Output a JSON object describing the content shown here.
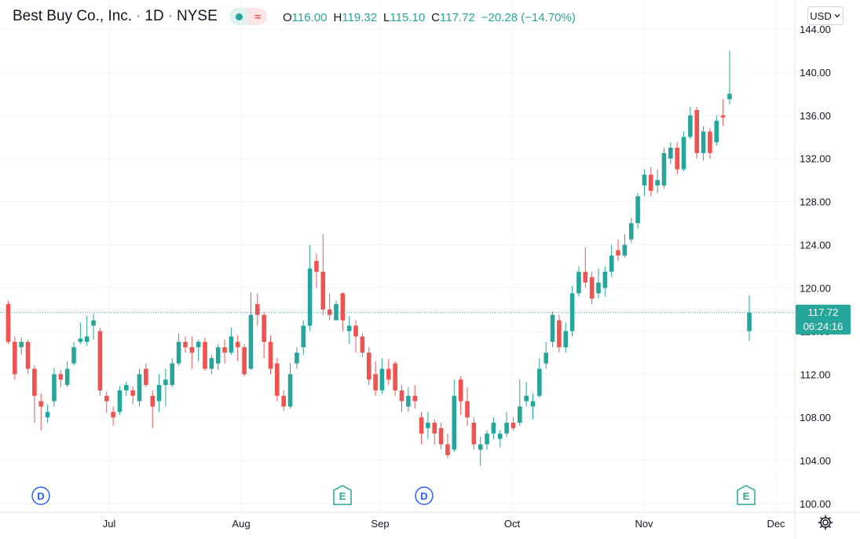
{
  "header": {
    "symbol_name": "Best Buy Co., Inc.",
    "interval": "1D",
    "exchange": "NYSE",
    "ohlc": {
      "open_label": "O",
      "open": "116.00",
      "high_label": "H",
      "high": "119.32",
      "low_label": "L",
      "low": "115.10",
      "close_label": "C",
      "close": "117.72",
      "change": "−20.28 (−14.70%)"
    },
    "currency": "USD",
    "currency_icon": "chevron-down-icon",
    "status_icons": [
      "market-open-dot-icon",
      "wave-icon"
    ]
  },
  "colors": {
    "up": "#26a69a",
    "down": "#ef5350",
    "grid": "#f0f3fa",
    "price_tag": "#26a69a",
    "dividend_marker": "#2962ff",
    "earnings_marker": "#26a69a"
  },
  "price_tag": {
    "price": "117.72",
    "countdown": "06:24:16"
  },
  "chart_data": {
    "type": "candlestick",
    "title": "Best Buy Co., Inc. · 1D · NYSE",
    "y_ticks": [
      "144.00",
      "140.00",
      "136.00",
      "132.00",
      "128.00",
      "124.00",
      "120.00",
      "116.00",
      "112.00",
      "108.00",
      "104.00",
      "100.00"
    ],
    "ylim": [
      100,
      144
    ],
    "x_ticks": [
      "Jul",
      "Aug",
      "Sep",
      "Oct",
      "Nov",
      "Dec"
    ],
    "last_price": 117.72,
    "grid": true,
    "markers": [
      {
        "label": "D",
        "type": "dividend",
        "near": "mid-June"
      },
      {
        "label": "E",
        "type": "earnings",
        "near": "late August"
      },
      {
        "label": "D",
        "type": "dividend",
        "near": "mid-September"
      },
      {
        "label": "E",
        "type": "earnings",
        "near": "late November"
      }
    ],
    "candles": [
      [
        118.5,
        115.0,
        118.8,
        114.8
      ],
      [
        115.0,
        112.0,
        115.5,
        111.5
      ],
      [
        114.5,
        115.0,
        115.4,
        113.8
      ],
      [
        115.0,
        112.5,
        115.2,
        112.0
      ],
      [
        112.5,
        110.0,
        112.8,
        107.5
      ],
      [
        109.5,
        109.0,
        110.2,
        106.8
      ],
      [
        108.0,
        108.5,
        109.2,
        107.5
      ],
      [
        109.5,
        112.0,
        112.6,
        109.0
      ],
      [
        112.0,
        111.5,
        112.4,
        110.8
      ],
      [
        111.0,
        112.5,
        113.2,
        110.8
      ],
      [
        113.0,
        114.5,
        115.0,
        112.8
      ],
      [
        115.0,
        115.3,
        116.8,
        114.8
      ],
      [
        115.0,
        115.5,
        117.4,
        114.6
      ],
      [
        116.5,
        117.0,
        117.6,
        115.2
      ],
      [
        116.0,
        110.5,
        116.3,
        110.0
      ],
      [
        110.0,
        109.5,
        110.4,
        108.4
      ],
      [
        108.5,
        108.0,
        109.0,
        107.2
      ],
      [
        108.5,
        110.5,
        110.9,
        108.2
      ],
      [
        110.5,
        111.0,
        111.3,
        110.0
      ],
      [
        110.5,
        110.0,
        110.9,
        109.2
      ],
      [
        109.5,
        112.0,
        112.5,
        109.0
      ],
      [
        112.5,
        111.0,
        113.0,
        110.8
      ],
      [
        110.0,
        109.0,
        110.5,
        107.0
      ],
      [
        109.5,
        111.0,
        112.0,
        108.5
      ],
      [
        111.0,
        111.5,
        112.5,
        109.0
      ],
      [
        111.0,
        113.0,
        113.5,
        110.8
      ],
      [
        113.0,
        115.0,
        115.8,
        112.8
      ],
      [
        115.0,
        114.5,
        115.5,
        114.0
      ],
      [
        114.5,
        114.0,
        115.5,
        112.5
      ],
      [
        114.5,
        115.0,
        115.2,
        113.2
      ],
      [
        115.0,
        112.5,
        115.4,
        112.3
      ],
      [
        112.5,
        113.5,
        113.8,
        112.0
      ],
      [
        113.0,
        114.5,
        114.8,
        112.4
      ],
      [
        114.5,
        114.0,
        115.2,
        113.0
      ],
      [
        114.0,
        115.5,
        116.3,
        113.8
      ],
      [
        115.0,
        114.5,
        115.6,
        113.2
      ],
      [
        114.5,
        112.0,
        114.8,
        111.8
      ],
      [
        112.5,
        117.5,
        119.6,
        112.4
      ],
      [
        118.5,
        117.5,
        119.5,
        116.5
      ],
      [
        117.5,
        115.0,
        117.8,
        113.5
      ],
      [
        115.0,
        112.5,
        115.6,
        112.0
      ],
      [
        113.0,
        110.0,
        113.5,
        109.5
      ],
      [
        110.0,
        109.0,
        110.5,
        108.6
      ],
      [
        109.0,
        112.0,
        113.0,
        108.8
      ],
      [
        113.0,
        114.0,
        114.5,
        112.5
      ],
      [
        114.5,
        116.5,
        117.0,
        113.8
      ],
      [
        116.5,
        121.8,
        124.0,
        116.0
      ],
      [
        122.5,
        121.5,
        123.2,
        120.0
      ],
      [
        121.5,
        118.0,
        125.0,
        117.5
      ],
      [
        118.0,
        117.5,
        119.5,
        117.0
      ],
      [
        117.0,
        118.5,
        118.8,
        117.0
      ],
      [
        119.5,
        117.0,
        119.6,
        116.0
      ],
      [
        116.0,
        116.5,
        117.4,
        114.8
      ],
      [
        116.5,
        115.5,
        117.0,
        114.0
      ],
      [
        115.5,
        114.0,
        115.8,
        113.6
      ],
      [
        114.0,
        111.5,
        114.5,
        111.0
      ],
      [
        112.0,
        110.5,
        113.2,
        110.0
      ],
      [
        110.5,
        112.5,
        113.5,
        110.2
      ],
      [
        112.5,
        111.5,
        113.4,
        111.0
      ],
      [
        113.0,
        110.5,
        113.2,
        110.0
      ],
      [
        110.5,
        109.5,
        111.0,
        108.5
      ],
      [
        109.0,
        110.0,
        110.8,
        108.5
      ],
      [
        110.0,
        109.5,
        111.0,
        108.8
      ],
      [
        108.0,
        106.5,
        108.5,
        105.5
      ],
      [
        107.0,
        107.5,
        108.5,
        106.0
      ],
      [
        107.5,
        106.5,
        107.8,
        105.5
      ],
      [
        107.0,
        105.5,
        107.5,
        105.0
      ],
      [
        105.5,
        104.5,
        106.5,
        104.2
      ],
      [
        105.0,
        110.0,
        111.5,
        104.8
      ],
      [
        111.5,
        109.5,
        111.8,
        108.2
      ],
      [
        109.5,
        108.0,
        110.8,
        107.2
      ],
      [
        107.5,
        105.5,
        108.0,
        105.0
      ],
      [
        105.0,
        105.5,
        106.2,
        103.5
      ],
      [
        105.5,
        106.5,
        106.8,
        105.0
      ],
      [
        106.5,
        107.5,
        108.0,
        106.0
      ],
      [
        106.0,
        106.5,
        106.8,
        105.2
      ],
      [
        106.5,
        107.5,
        108.5,
        106.2
      ],
      [
        107.5,
        107.0,
        108.0,
        106.8
      ],
      [
        107.5,
        109.0,
        111.5,
        107.2
      ],
      [
        109.5,
        110.0,
        111.3,
        109.0
      ],
      [
        109.0,
        109.5,
        110.2,
        107.8
      ],
      [
        110.0,
        112.5,
        113.5,
        109.8
      ],
      [
        113.0,
        114.0,
        115.0,
        112.5
      ],
      [
        115.0,
        117.5,
        117.8,
        114.5
      ],
      [
        117.0,
        114.5,
        117.5,
        114.0
      ],
      [
        114.5,
        116.0,
        116.8,
        114.0
      ],
      [
        116.0,
        119.5,
        120.2,
        115.5
      ],
      [
        119.5,
        121.5,
        122.0,
        119.2
      ],
      [
        121.5,
        120.5,
        123.8,
        120.0
      ],
      [
        121.0,
        119.0,
        121.5,
        118.5
      ],
      [
        119.5,
        120.5,
        121.8,
        119.0
      ],
      [
        120.0,
        121.5,
        122.0,
        119.2
      ],
      [
        121.5,
        123.0,
        124.0,
        121.0
      ],
      [
        123.5,
        123.0,
        124.5,
        122.5
      ],
      [
        123.0,
        124.0,
        125.0,
        122.8
      ],
      [
        124.5,
        126.0,
        126.5,
        124.2
      ],
      [
        126.0,
        128.5,
        128.8,
        125.5
      ],
      [
        129.5,
        130.5,
        131.0,
        128.5
      ],
      [
        130.5,
        129.0,
        131.2,
        128.5
      ],
      [
        129.5,
        130.0,
        131.0,
        128.8
      ],
      [
        129.5,
        132.5,
        133.0,
        129.2
      ],
      [
        132.0,
        133.0,
        133.5,
        131.5
      ],
      [
        133.0,
        131.0,
        133.5,
        130.5
      ],
      [
        131.0,
        134.0,
        134.5,
        130.8
      ],
      [
        134.0,
        136.0,
        136.8,
        133.8
      ],
      [
        136.5,
        132.5,
        136.8,
        132.0
      ],
      [
        132.5,
        134.5,
        135.0,
        131.8
      ],
      [
        134.5,
        132.5,
        134.8,
        132.0
      ],
      [
        133.5,
        135.5,
        136.0,
        133.2
      ],
      [
        136.0,
        135.8,
        137.5,
        135.0
      ],
      [
        137.5,
        138.0,
        142.0,
        137.0
      ],
      [
        116.0,
        117.72,
        119.32,
        115.1
      ]
    ],
    "candle_slots": [
      0,
      1,
      2,
      3,
      4,
      5,
      6,
      7,
      8,
      9,
      10,
      11,
      12,
      13,
      14,
      15,
      16,
      17,
      18,
      19,
      20,
      21,
      22,
      23,
      24,
      25,
      26,
      27,
      28,
      29,
      30,
      31,
      32,
      33,
      34,
      35,
      36,
      37,
      38,
      39,
      40,
      41,
      42,
      43,
      44,
      45,
      46,
      47,
      48,
      49,
      50,
      51,
      52,
      53,
      54,
      55,
      56,
      57,
      58,
      59,
      60,
      61,
      62,
      63,
      64,
      65,
      66,
      67,
      68,
      69,
      70,
      71,
      72,
      73,
      74,
      75,
      76,
      77,
      78,
      79,
      80,
      81,
      82,
      83,
      84,
      85,
      86,
      87,
      88,
      89,
      90,
      91,
      92,
      93,
      94,
      95,
      96,
      97,
      98,
      99,
      100,
      101,
      102,
      103,
      104,
      105,
      106,
      107,
      108,
      109,
      110,
      113
    ]
  }
}
